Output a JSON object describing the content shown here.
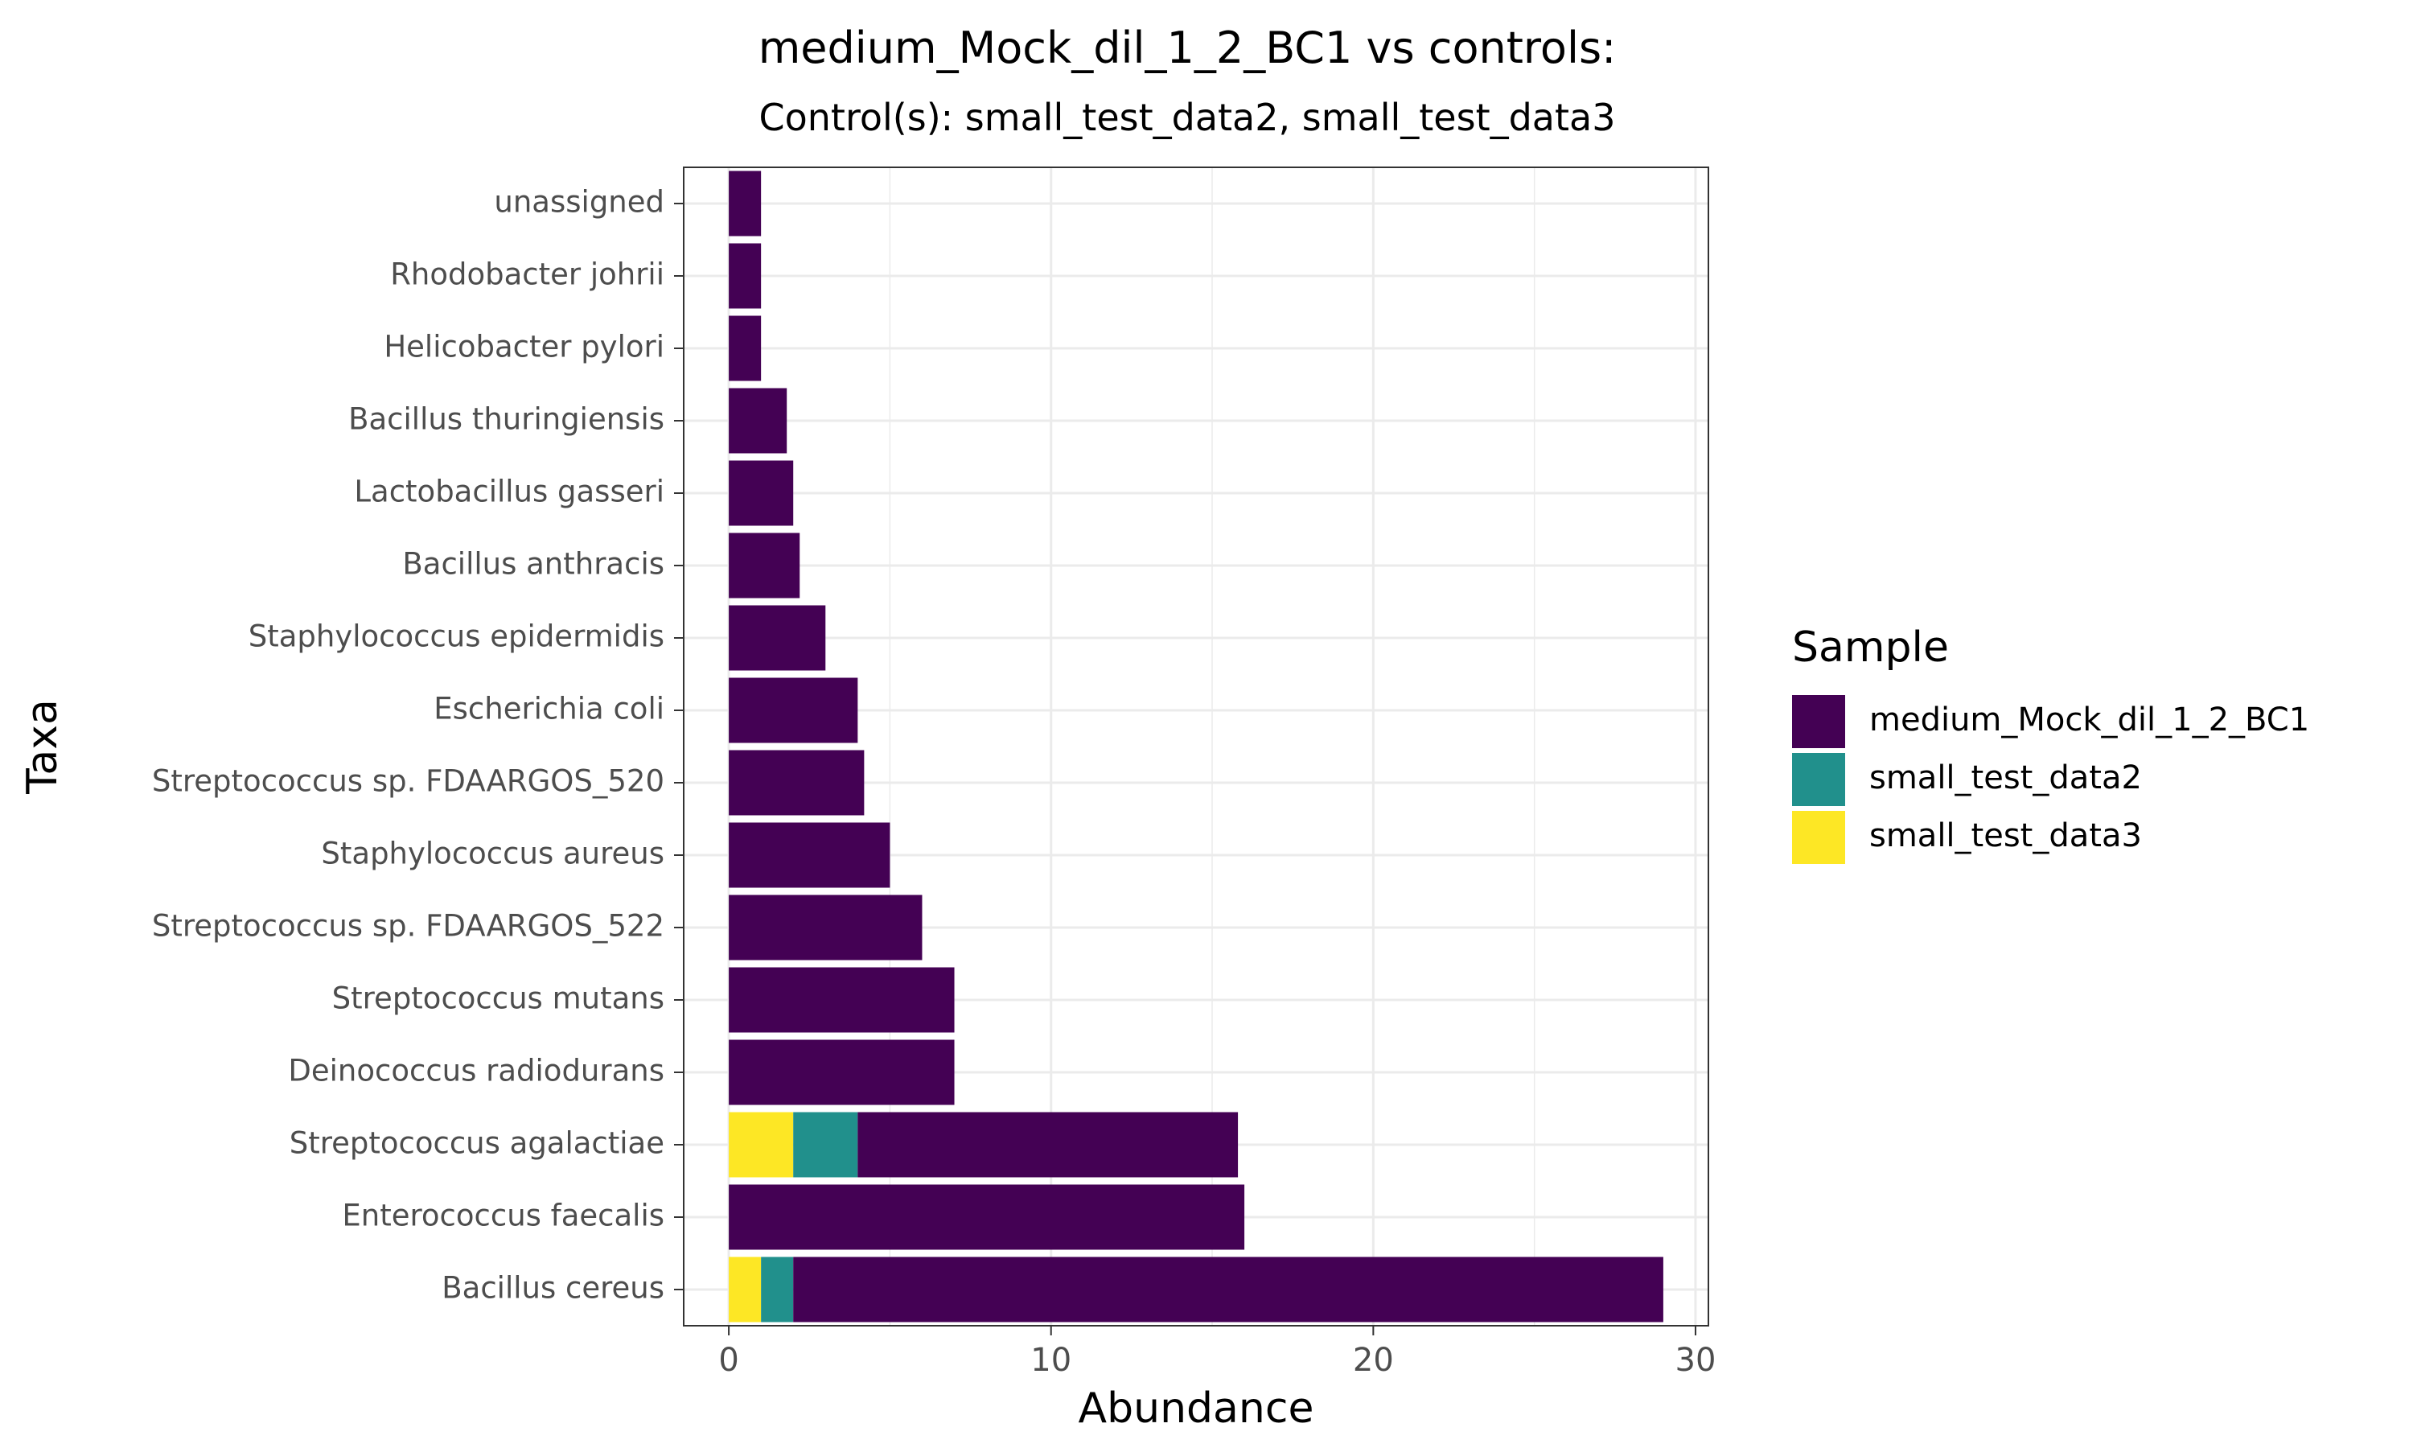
{
  "chart_data": {
    "type": "bar",
    "orientation": "horizontal",
    "stacked": true,
    "title": "medium_Mock_dil_1_2_BC1 vs controls:",
    "subtitle": "Control(s): small_test_data2, small_test_data3",
    "xlabel": "Abundance",
    "ylabel": "Taxa",
    "xlim": [
      -1.4,
      30.4
    ],
    "xticks": [
      0,
      10,
      20,
      30
    ],
    "grid": true,
    "legend_title": "Sample",
    "legend_position": "right",
    "categories": [
      "unassigned",
      "Rhodobacter johrii",
      "Helicobacter pylori",
      "Bacillus thuringiensis",
      "Lactobacillus gasseri",
      "Bacillus anthracis",
      "Staphylococcus epidermidis",
      "Escherichia coli",
      "Streptococcus sp. FDAARGOS_520",
      "Staphylococcus aureus",
      "Streptococcus sp. FDAARGOS_522",
      "Streptococcus mutans",
      "Deinococcus radiodurans",
      "Streptococcus agalactiae",
      "Enterococcus faecalis",
      "Bacillus cereus"
    ],
    "stack_order": [
      "small_test_data3",
      "small_test_data2",
      "medium_Mock_dil_1_2_BC1"
    ],
    "series": [
      {
        "name": "medium_Mock_dil_1_2_BC1",
        "color": "#440154",
        "values": [
          1,
          1,
          1,
          1.8,
          2,
          2.2,
          3,
          4,
          4.2,
          5,
          6,
          7,
          7,
          11.8,
          16,
          27
        ]
      },
      {
        "name": "small_test_data2",
        "color": "#21908C",
        "values": [
          0,
          0,
          0,
          0,
          0,
          0,
          0,
          0,
          0,
          0,
          0,
          0,
          0,
          2,
          0,
          1
        ]
      },
      {
        "name": "small_test_data3",
        "color": "#FDE725",
        "values": [
          0,
          0,
          0,
          0,
          0,
          0,
          0,
          0,
          0,
          0,
          0,
          0,
          0,
          2,
          0,
          1
        ]
      }
    ]
  }
}
